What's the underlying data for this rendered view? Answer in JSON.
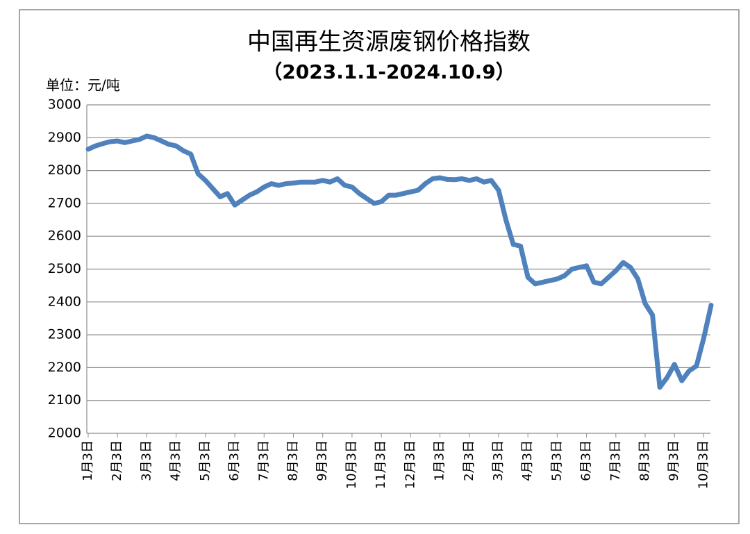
{
  "chart_data": {
    "type": "line",
    "title": "中国再生资源废钢价格指数",
    "subtitle": "（2023.1.1-2024.10.9）",
    "unit_label": "单位：元/吨",
    "categories": [
      "1月3日",
      null,
      null,
      null,
      "2月3日",
      null,
      null,
      null,
      "3月3日",
      null,
      null,
      null,
      "4月3日",
      null,
      null,
      null,
      "5月3日",
      null,
      null,
      null,
      "6月3日",
      null,
      null,
      null,
      "7月3日",
      null,
      null,
      null,
      "8月3日",
      null,
      null,
      null,
      "9月3日",
      null,
      null,
      null,
      "10月3日",
      null,
      null,
      null,
      "11月3日",
      null,
      null,
      null,
      "12月3日",
      null,
      null,
      null,
      "1月3日",
      null,
      null,
      null,
      "2月3日",
      null,
      null,
      null,
      "3月3日",
      null,
      null,
      null,
      "4月3日",
      null,
      null,
      null,
      "5月3日",
      null,
      null,
      null,
      "6月3日",
      null,
      null,
      null,
      "7月3日",
      null,
      null,
      null,
      "8月3日",
      null,
      null,
      null,
      "9月3日",
      null,
      null,
      null,
      "10月3日",
      null
    ],
    "series": [
      {
        "name": "废钢价格指数",
        "color": "#4f81bd",
        "values": [
          2865,
          2875,
          2882,
          2888,
          2890,
          2885,
          2890,
          2895,
          2905,
          2900,
          2890,
          2880,
          2875,
          2860,
          2850,
          2790,
          2770,
          2745,
          2720,
          2730,
          2695,
          2710,
          2725,
          2735,
          2750,
          2760,
          2755,
          2760,
          2762,
          2765,
          2765,
          2765,
          2770,
          2765,
          2775,
          2755,
          2750,
          2730,
          2715,
          2700,
          2705,
          2725,
          2725,
          2730,
          2735,
          2740,
          2760,
          2775,
          2778,
          2773,
          2772,
          2775,
          2770,
          2775,
          2765,
          2770,
          2740,
          2650,
          2575,
          2570,
          2475,
          2455,
          2460,
          2465,
          2470,
          2480,
          2500,
          2505,
          2510,
          2460,
          2455,
          2475,
          2495,
          2520,
          2505,
          2470,
          2395,
          2360,
          2140,
          2170,
          2210,
          2160,
          2190,
          2205,
          2290,
          2390
        ]
      }
    ],
    "ylim": [
      2000,
      3000
    ],
    "yticks": [
      2000,
      2100,
      2200,
      2300,
      2400,
      2500,
      2600,
      2700,
      2800,
      2900,
      3000
    ],
    "grid": true
  }
}
